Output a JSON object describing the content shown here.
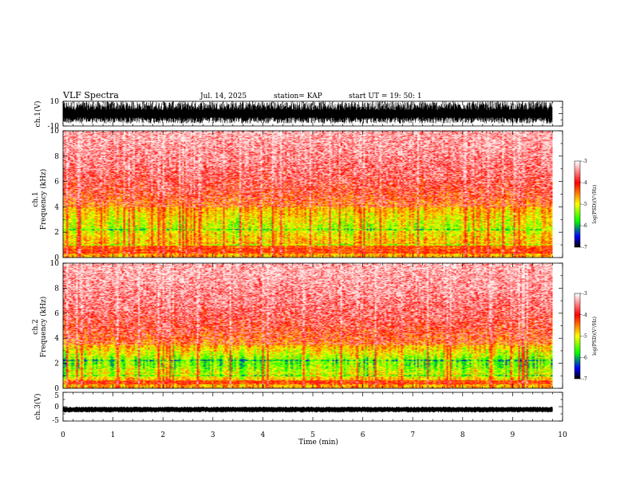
{
  "header": {
    "title": "VLF Spectra",
    "date": "Jul. 14, 2025",
    "station": "station= KAP",
    "start": "start  UT  =   19: 50: 1"
  },
  "colors": {
    "colormap": [
      "#ffffff",
      "#ff0000",
      "#ffff00",
      "#00ff00",
      "#0000ff",
      "#000000"
    ],
    "axes": "#000000",
    "waveform": "#000000"
  },
  "chart_data": [
    {
      "type": "line",
      "name": "ch1-waveform",
      "ylabel": "ch.1(V)",
      "ylim": [
        -10,
        10
      ],
      "yticklabels": [
        "10",
        "-10"
      ],
      "xlim": [
        0,
        10
      ],
      "data_end_min": 9.8,
      "description": "saturated waveform spanning approx -8 to +10 V"
    },
    {
      "type": "heatmap",
      "name": "ch1-spectrogram",
      "ylabel": "ch.1\nFrequency (kHz)",
      "ylim": [
        0,
        10
      ],
      "yticks": [
        0,
        2,
        4,
        6,
        8,
        10
      ],
      "xlim": [
        0,
        10
      ],
      "data_end_min": 9.8,
      "intense_band_khz": [
        1,
        4
      ],
      "colorbar": {
        "label": "log(PSD)(V²/Hz)",
        "range": [
          -7,
          -3
        ],
        "ticks": [
          "-3",
          "-4",
          "-5",
          "-6",
          "-7"
        ]
      }
    },
    {
      "type": "heatmap",
      "name": "ch2-spectrogram",
      "ylabel": "ch.2\nFrequency (kHz)",
      "ylim": [
        0,
        10
      ],
      "yticks": [
        0,
        2,
        4,
        6,
        8,
        10
      ],
      "xlim": [
        0,
        10
      ],
      "data_end_min": 9.8,
      "intense_band_khz": [
        0.5,
        3.5
      ],
      "colorbar": {
        "label": "log(PSD)(V²/Hz)",
        "range": [
          -7,
          -3
        ],
        "ticks": [
          "-3",
          "-4",
          "-5",
          "-6",
          "-7"
        ]
      }
    },
    {
      "type": "line",
      "name": "ch3-waveform",
      "ylabel": "ch.3(V)",
      "ylim": [
        -5,
        5
      ],
      "yticklabels": [
        "5",
        "0",
        "-5"
      ],
      "xlim": [
        0,
        10
      ],
      "data_end_min": 9.8,
      "description": "narrow band around -1 V"
    }
  ],
  "xaxis": {
    "label": "Time (min)",
    "ticks": [
      "0",
      "1",
      "2",
      "3",
      "4",
      "5",
      "6",
      "7",
      "8",
      "9",
      "10"
    ]
  }
}
